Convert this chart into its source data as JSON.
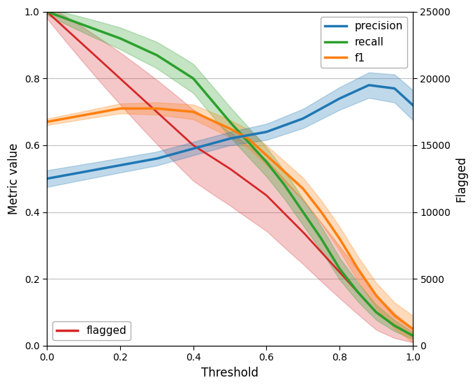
{
  "xlabel": "Threshold",
  "ylabel_left": "Metric value",
  "ylabel_right": "Flagged",
  "xlim": [
    0.0,
    1.0
  ],
  "ylim_left": [
    0.0,
    1.0
  ],
  "ylim_right": [
    0,
    25000
  ],
  "x_ticks": [
    0.0,
    0.2,
    0.4,
    0.6,
    0.8,
    1.0
  ],
  "y_ticks_left": [
    0.0,
    0.2,
    0.4,
    0.6,
    0.8,
    1.0
  ],
  "y_ticks_right": [
    0,
    5000,
    10000,
    15000,
    20000,
    25000
  ],
  "precision_color": "#1f77b4",
  "recall_color": "#2ca02c",
  "f1_color": "#ff7f0e",
  "flagged_color": "#d62728",
  "background_color": "#ffffff",
  "plot_bg_color": "#ffffff",
  "grid_color": "#c0c0c0"
}
